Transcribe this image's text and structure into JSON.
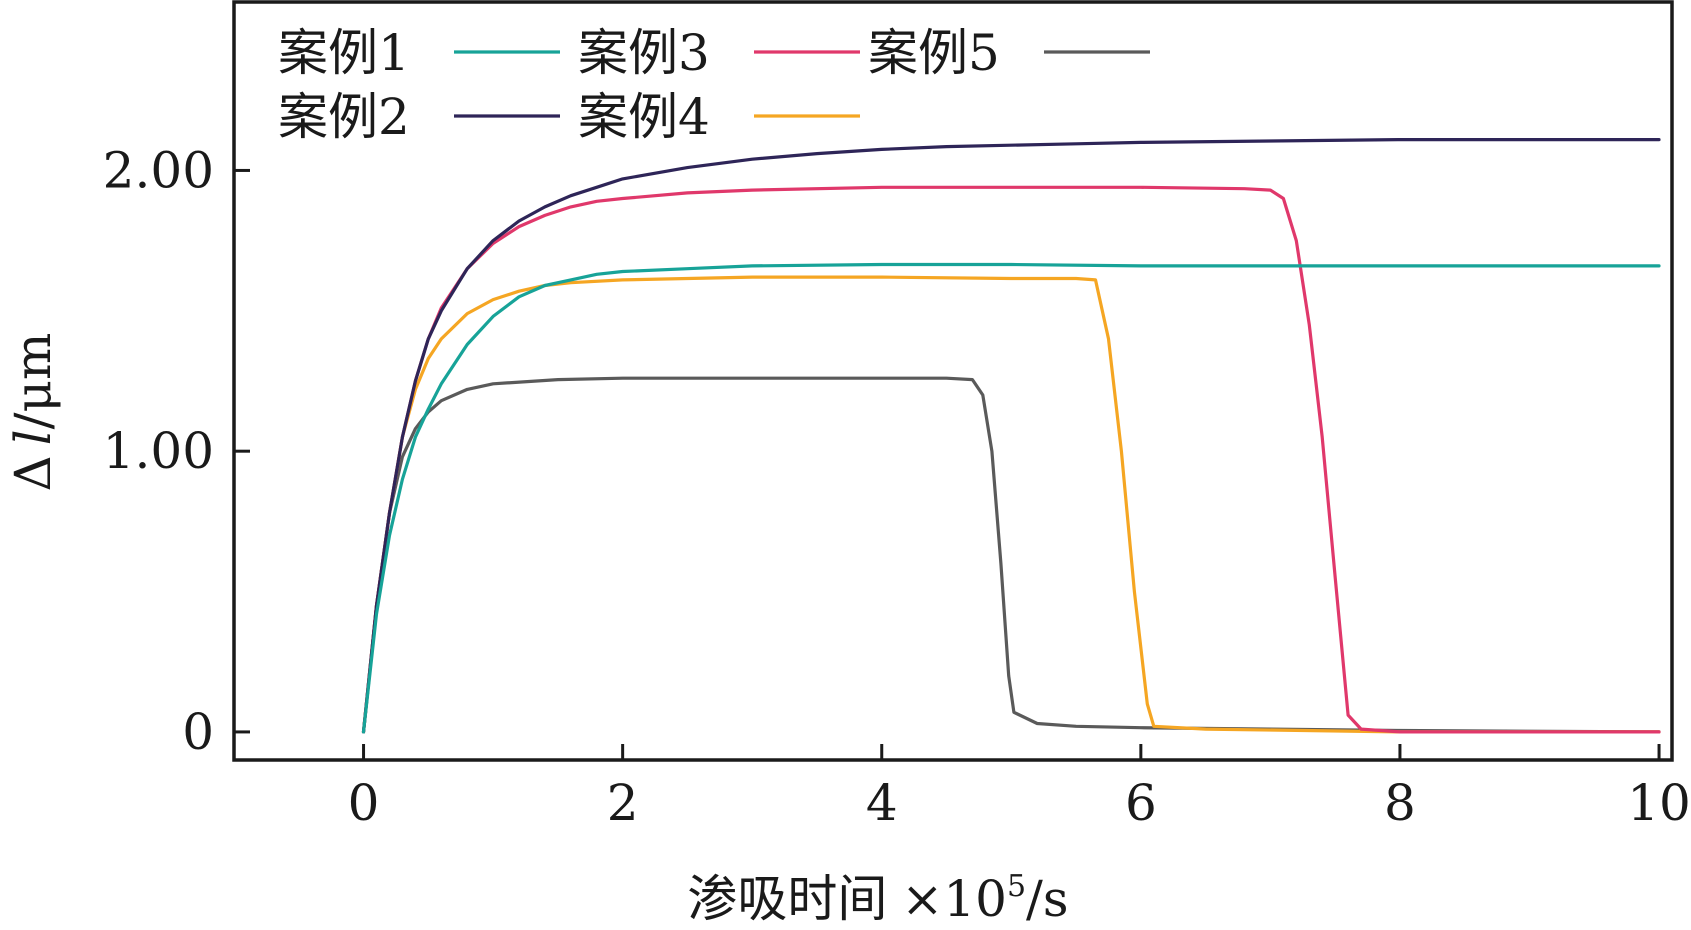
{
  "chart_data": {
    "type": "line",
    "xlabel_main": "渗吸时间",
    "xlabel_unit_prefix": "×10",
    "xlabel_unit_exp": "5",
    "xlabel_unit_suffix": "/s",
    "ylabel_main": "Δ",
    "ylabel_var": "l",
    "ylabel_unit": "/μm",
    "xlim": [
      -1,
      10.1
    ],
    "ylim": [
      -0.1,
      2.6
    ],
    "x_ticks": [
      0,
      2,
      4,
      6,
      8,
      10
    ],
    "x_tick_labels": [
      "0",
      "2",
      "4",
      "6",
      "8",
      "10"
    ],
    "y_ticks": [
      0,
      1,
      2
    ],
    "y_tick_labels": [
      "0",
      "1.00",
      "2.00"
    ],
    "grid": false,
    "legend_position": "top-left",
    "series": [
      {
        "name": "案例1",
        "color": "#17a398",
        "points": [
          [
            0,
            0
          ],
          [
            0.1,
            0.42
          ],
          [
            0.2,
            0.7
          ],
          [
            0.3,
            0.9
          ],
          [
            0.4,
            1.05
          ],
          [
            0.5,
            1.15
          ],
          [
            0.6,
            1.24
          ],
          [
            0.8,
            1.38
          ],
          [
            1.0,
            1.48
          ],
          [
            1.2,
            1.55
          ],
          [
            1.4,
            1.59
          ],
          [
            1.6,
            1.61
          ],
          [
            1.8,
            1.63
          ],
          [
            2.0,
            1.64
          ],
          [
            2.5,
            1.65
          ],
          [
            3.0,
            1.66
          ],
          [
            4.0,
            1.665
          ],
          [
            5.0,
            1.665
          ],
          [
            6.0,
            1.66
          ],
          [
            7.0,
            1.66
          ],
          [
            8.0,
            1.66
          ],
          [
            9.0,
            1.66
          ],
          [
            10.0,
            1.66
          ]
        ]
      },
      {
        "name": "案例2",
        "color": "#2e2558",
        "points": [
          [
            0,
            0
          ],
          [
            0.1,
            0.45
          ],
          [
            0.2,
            0.78
          ],
          [
            0.3,
            1.05
          ],
          [
            0.4,
            1.25
          ],
          [
            0.5,
            1.4
          ],
          [
            0.6,
            1.5
          ],
          [
            0.8,
            1.65
          ],
          [
            1.0,
            1.75
          ],
          [
            1.2,
            1.82
          ],
          [
            1.4,
            1.87
          ],
          [
            1.6,
            1.91
          ],
          [
            1.8,
            1.94
          ],
          [
            2.0,
            1.97
          ],
          [
            2.5,
            2.01
          ],
          [
            3.0,
            2.04
          ],
          [
            3.5,
            2.06
          ],
          [
            4.0,
            2.075
          ],
          [
            4.5,
            2.085
          ],
          [
            5.0,
            2.09
          ],
          [
            5.5,
            2.095
          ],
          [
            6.0,
            2.1
          ],
          [
            7.0,
            2.105
          ],
          [
            8.0,
            2.11
          ],
          [
            9.0,
            2.11
          ],
          [
            10.0,
            2.11
          ]
        ]
      },
      {
        "name": "案例3",
        "color": "#e0386b",
        "points": [
          [
            0,
            0
          ],
          [
            0.1,
            0.45
          ],
          [
            0.2,
            0.78
          ],
          [
            0.3,
            1.05
          ],
          [
            0.4,
            1.25
          ],
          [
            0.5,
            1.4
          ],
          [
            0.6,
            1.51
          ],
          [
            0.8,
            1.65
          ],
          [
            1.0,
            1.74
          ],
          [
            1.2,
            1.8
          ],
          [
            1.4,
            1.84
          ],
          [
            1.6,
            1.87
          ],
          [
            1.8,
            1.89
          ],
          [
            2.0,
            1.9
          ],
          [
            2.5,
            1.92
          ],
          [
            3.0,
            1.93
          ],
          [
            4.0,
            1.94
          ],
          [
            5.0,
            1.94
          ],
          [
            6.0,
            1.94
          ],
          [
            6.8,
            1.935
          ],
          [
            7.0,
            1.93
          ],
          [
            7.1,
            1.9
          ],
          [
            7.2,
            1.75
          ],
          [
            7.3,
            1.45
          ],
          [
            7.4,
            1.05
          ],
          [
            7.5,
            0.55
          ],
          [
            7.6,
            0.06
          ],
          [
            7.7,
            0.01
          ],
          [
            8.0,
            0.0
          ],
          [
            9.0,
            0.0
          ],
          [
            10.0,
            0.0
          ]
        ]
      },
      {
        "name": "案例4",
        "color": "#f5a623",
        "points": [
          [
            0,
            0
          ],
          [
            0.1,
            0.45
          ],
          [
            0.2,
            0.78
          ],
          [
            0.3,
            1.05
          ],
          [
            0.4,
            1.22
          ],
          [
            0.5,
            1.33
          ],
          [
            0.6,
            1.4
          ],
          [
            0.8,
            1.49
          ],
          [
            1.0,
            1.54
          ],
          [
            1.2,
            1.57
          ],
          [
            1.4,
            1.59
          ],
          [
            1.6,
            1.6
          ],
          [
            2.0,
            1.61
          ],
          [
            3.0,
            1.62
          ],
          [
            4.0,
            1.62
          ],
          [
            5.0,
            1.615
          ],
          [
            5.5,
            1.615
          ],
          [
            5.65,
            1.61
          ],
          [
            5.75,
            1.4
          ],
          [
            5.85,
            1.0
          ],
          [
            5.95,
            0.5
          ],
          [
            6.05,
            0.1
          ],
          [
            6.1,
            0.02
          ],
          [
            6.5,
            0.01
          ],
          [
            8.0,
            0.0
          ],
          [
            10.0,
            0.0
          ]
        ]
      },
      {
        "name": "案例5",
        "color": "#5a5a5a",
        "points": [
          [
            0,
            0
          ],
          [
            0.1,
            0.45
          ],
          [
            0.2,
            0.78
          ],
          [
            0.3,
            0.98
          ],
          [
            0.4,
            1.08
          ],
          [
            0.5,
            1.14
          ],
          [
            0.6,
            1.18
          ],
          [
            0.8,
            1.22
          ],
          [
            1.0,
            1.24
          ],
          [
            1.5,
            1.255
          ],
          [
            2.0,
            1.26
          ],
          [
            3.0,
            1.26
          ],
          [
            4.0,
            1.26
          ],
          [
            4.5,
            1.26
          ],
          [
            4.7,
            1.255
          ],
          [
            4.78,
            1.2
          ],
          [
            4.85,
            1.0
          ],
          [
            4.92,
            0.6
          ],
          [
            4.98,
            0.2
          ],
          [
            5.02,
            0.07
          ],
          [
            5.2,
            0.03
          ],
          [
            5.5,
            0.02
          ],
          [
            6.0,
            0.015
          ],
          [
            7.0,
            0.01
          ],
          [
            8.0,
            0.005
          ],
          [
            10.0,
            0.0
          ]
        ]
      }
    ]
  },
  "legend": {
    "items": [
      "案例1",
      "案例3",
      "案例5",
      "案例2",
      "案例4"
    ]
  }
}
